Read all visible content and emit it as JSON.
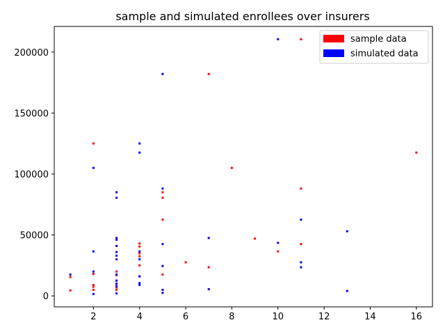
{
  "chart_data": {
    "type": "scatter",
    "title": "sample and simulated enrollees over insurers",
    "xlabel": "",
    "ylabel": "",
    "xlim": [
      0.3,
      16.7
    ],
    "ylim": [
      -9000,
      221000
    ],
    "xticks": [
      2,
      4,
      6,
      8,
      10,
      12,
      14,
      16
    ],
    "yticks": [
      0,
      50000,
      100000,
      150000,
      200000
    ],
    "grid": false,
    "legend_position": "top-right",
    "series": [
      {
        "name": "sample data",
        "color": "#ff0000",
        "points": [
          [
            1,
            4500
          ],
          [
            1,
            15500
          ],
          [
            2,
            125000
          ],
          [
            2,
            18000
          ],
          [
            2,
            9000
          ],
          [
            2,
            7500
          ],
          [
            2,
            5000
          ],
          [
            3,
            20000
          ],
          [
            3,
            17000
          ],
          [
            3,
            12500
          ],
          [
            3,
            10000
          ],
          [
            3,
            7000
          ],
          [
            3,
            5000
          ],
          [
            4,
            43000
          ],
          [
            4,
            40500
          ],
          [
            4,
            35000
          ],
          [
            4,
            32500
          ],
          [
            4,
            25000
          ],
          [
            4,
            16000
          ],
          [
            5,
            85000
          ],
          [
            5,
            80500
          ],
          [
            5,
            62500
          ],
          [
            5,
            17500
          ],
          [
            6,
            27500
          ],
          [
            7,
            182000
          ],
          [
            7,
            23500
          ],
          [
            8,
            105000
          ],
          [
            9,
            47000
          ],
          [
            10,
            36500
          ],
          [
            11,
            210500
          ],
          [
            11,
            88000
          ],
          [
            11,
            42500
          ],
          [
            16,
            117500
          ]
        ]
      },
      {
        "name": "simulated data",
        "color": "#0000ff",
        "points": [
          [
            1,
            17500
          ],
          [
            2,
            105000
          ],
          [
            2,
            36500
          ],
          [
            2,
            20000
          ],
          [
            2,
            1500
          ],
          [
            3,
            85000
          ],
          [
            3,
            80500
          ],
          [
            3,
            47500
          ],
          [
            3,
            46000
          ],
          [
            3,
            41000
          ],
          [
            3,
            36000
          ],
          [
            3,
            33000
          ],
          [
            3,
            30000
          ],
          [
            3,
            17500
          ],
          [
            3,
            12500
          ],
          [
            3,
            10000
          ],
          [
            3,
            8000
          ],
          [
            3,
            2000
          ],
          [
            4,
            125000
          ],
          [
            4,
            117500
          ],
          [
            4,
            36500
          ],
          [
            4,
            30000
          ],
          [
            4,
            16000
          ],
          [
            4,
            10500
          ],
          [
            4,
            9000
          ],
          [
            5,
            182000
          ],
          [
            5,
            88000
          ],
          [
            5,
            42500
          ],
          [
            5,
            24500
          ],
          [
            5,
            5000
          ],
          [
            5,
            2500
          ],
          [
            7,
            47500
          ],
          [
            7,
            5500
          ],
          [
            10,
            210500
          ],
          [
            10,
            43500
          ],
          [
            11,
            62500
          ],
          [
            11,
            27500
          ],
          [
            11,
            23500
          ],
          [
            13,
            53000
          ],
          [
            13,
            4000
          ]
        ]
      }
    ]
  }
}
